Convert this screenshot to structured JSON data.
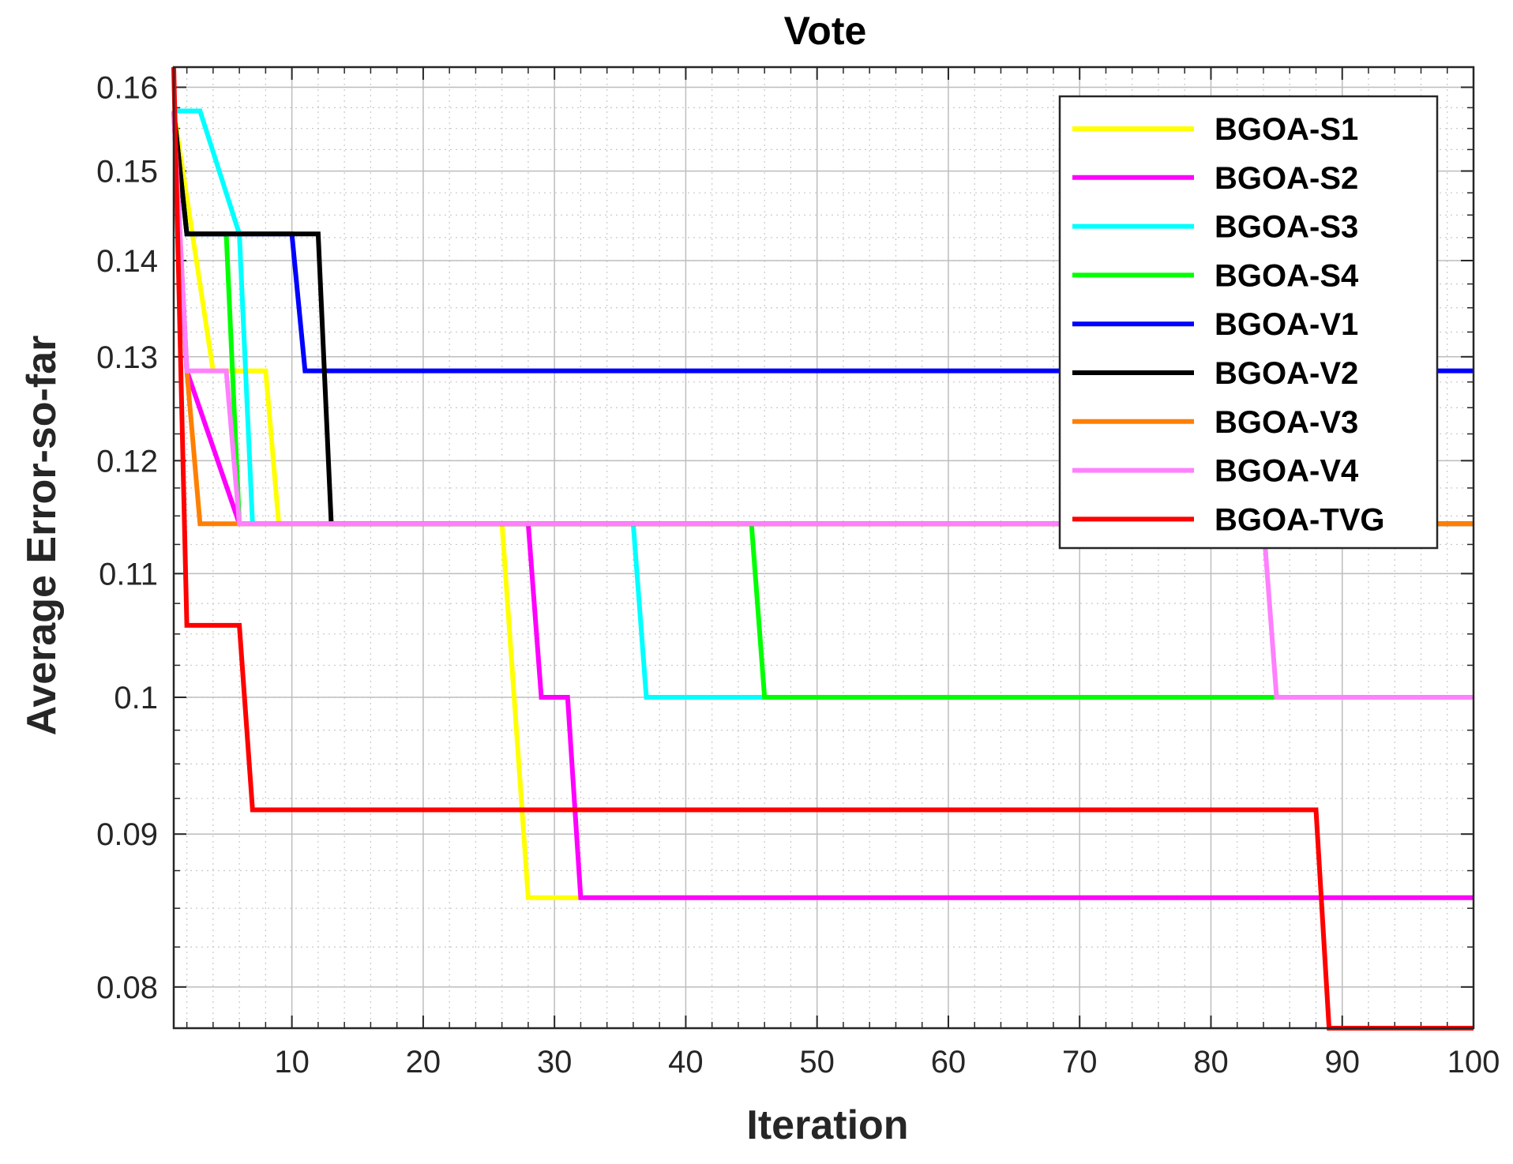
{
  "chart_data": {
    "type": "line",
    "title": "Vote",
    "xlabel": "Iteration",
    "ylabel": "Average Error-so-far",
    "xlim": [
      1,
      100
    ],
    "ylim": [
      0.0775,
      0.1625
    ],
    "x_scale": "linear",
    "y_scale": "log",
    "grid": true,
    "legend_position": "top-right",
    "x_ticks": [
      10,
      20,
      30,
      40,
      50,
      60,
      70,
      80,
      90,
      100
    ],
    "y_ticks": [
      0.08,
      0.09,
      0.1,
      0.11,
      0.12,
      0.13,
      0.14,
      0.15,
      0.16
    ],
    "x_tick_labels": [
      "10",
      "20",
      "30",
      "40",
      "50",
      "60",
      "70",
      "80",
      "90",
      "100"
    ],
    "y_tick_labels": [
      "0.08",
      "0.09",
      "0.1",
      "0.11",
      "0.12",
      "0.13",
      "0.14",
      "0.15",
      "0.16"
    ],
    "series": [
      {
        "name": "BGOA-S1",
        "color": "#ffff00",
        "points": [
          [
            1,
            0.1571
          ],
          [
            4,
            0.1286
          ],
          [
            8,
            0.1286
          ],
          [
            9,
            0.1143
          ],
          [
            26,
            0.1143
          ],
          [
            28,
            0.0857
          ],
          [
            100,
            0.0857
          ]
        ]
      },
      {
        "name": "BGOA-S2",
        "color": "#ff00ff",
        "points": [
          [
            1,
            0.1571
          ],
          [
            2,
            0.1286
          ],
          [
            6,
            0.1143
          ],
          [
            28,
            0.1143
          ],
          [
            29,
            0.1
          ],
          [
            31,
            0.1
          ],
          [
            32,
            0.0857
          ],
          [
            100,
            0.0857
          ]
        ]
      },
      {
        "name": "BGOA-S3",
        "color": "#00ffff",
        "points": [
          [
            1,
            0.1571
          ],
          [
            3,
            0.1571
          ],
          [
            6,
            0.1429
          ],
          [
            7,
            0.1143
          ],
          [
            36,
            0.1143
          ],
          [
            37,
            0.1
          ],
          [
            100,
            0.1
          ]
        ]
      },
      {
        "name": "BGOA-S4",
        "color": "#00ff00",
        "points": [
          [
            1,
            0.1571
          ],
          [
            2,
            0.1429
          ],
          [
            5,
            0.1429
          ],
          [
            6,
            0.1143
          ],
          [
            45,
            0.1143
          ],
          [
            46,
            0.1
          ],
          [
            100,
            0.1
          ]
        ]
      },
      {
        "name": "BGOA-V1",
        "color": "#0000ff",
        "points": [
          [
            1,
            0.1571
          ],
          [
            2,
            0.1429
          ],
          [
            10,
            0.1429
          ],
          [
            11,
            0.1286
          ],
          [
            100,
            0.1286
          ]
        ]
      },
      {
        "name": "BGOA-V2",
        "color": "#000000",
        "points": [
          [
            1,
            0.1571
          ],
          [
            2,
            0.1429
          ],
          [
            12,
            0.1429
          ],
          [
            13,
            0.1143
          ],
          [
            100,
            0.1143
          ]
        ]
      },
      {
        "name": "BGOA-V3",
        "color": "#ff8000",
        "points": [
          [
            1,
            0.1571
          ],
          [
            2,
            0.1286
          ],
          [
            3,
            0.1143
          ],
          [
            100,
            0.1143
          ]
        ]
      },
      {
        "name": "BGOA-V4",
        "color": "#ff80ff",
        "points": [
          [
            1,
            0.1571
          ],
          [
            2,
            0.1286
          ],
          [
            5,
            0.1286
          ],
          [
            6,
            0.1143
          ],
          [
            84,
            0.1143
          ],
          [
            85,
            0.1
          ],
          [
            100,
            0.1
          ]
        ]
      },
      {
        "name": "BGOA-TVG",
        "color": "#ff0000",
        "points": [
          [
            1,
            0.1625
          ],
          [
            2,
            0.1057
          ],
          [
            6,
            0.1057
          ],
          [
            7,
            0.0917
          ],
          [
            88,
            0.0917
          ],
          [
            89,
            0.0775
          ],
          [
            100,
            0.0775
          ]
        ]
      }
    ]
  }
}
